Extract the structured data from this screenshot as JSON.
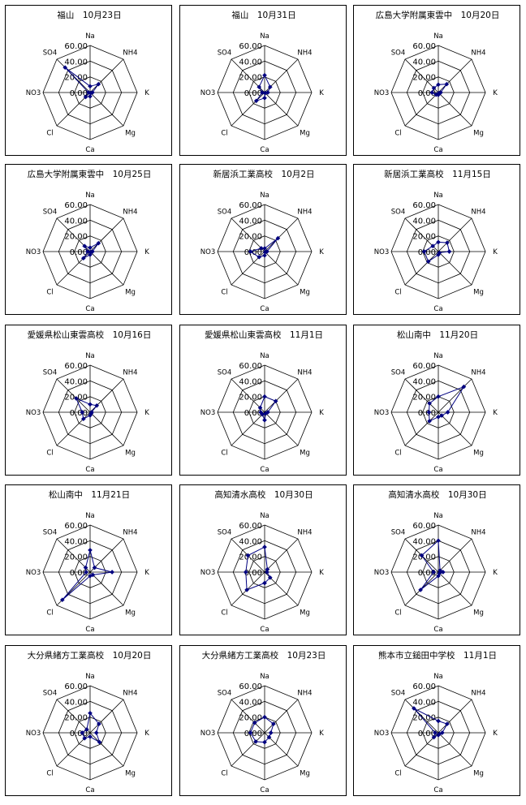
{
  "chart_data": [
    {
      "type": "radar",
      "title": "福山　10月23日",
      "categories": [
        "Na",
        "NH4",
        "K",
        "Mg",
        "Ca",
        "Cl",
        "NO3",
        "SO4"
      ],
      "ticks": [
        "0.00",
        "20.00",
        "40.00",
        "60.00"
      ],
      "rmax": 60,
      "series": [
        {
          "values": [
            8,
            15,
            3,
            1,
            5,
            8,
            2,
            45
          ]
        }
      ]
    },
    {
      "type": "radar",
      "title": "福山　10月31日",
      "categories": [
        "Na",
        "NH4",
        "K",
        "Mg",
        "Ca",
        "Cl",
        "NO3",
        "SO4"
      ],
      "ticks": [
        "0.00",
        "20.00",
        "40.00",
        "60.00"
      ],
      "rmax": 60,
      "series": [
        {
          "values": [
            22,
            10,
            4,
            1,
            7,
            15,
            3,
            10
          ]
        }
      ]
    },
    {
      "type": "radar",
      "title": "広島大学附属東雲中　10月20日",
      "categories": [
        "Na",
        "NH4",
        "K",
        "Mg",
        "Ca",
        "Cl",
        "NO3",
        "SO4"
      ],
      "ticks": [
        "0.00",
        "20.00",
        "40.00",
        "60.00"
      ],
      "rmax": 60,
      "series": [
        {
          "values": [
            10,
            15,
            3,
            1,
            3,
            4,
            8,
            8
          ]
        }
      ]
    },
    {
      "type": "radar",
      "title": "広島大学附属東雲中　10月25日",
      "categories": [
        "Na",
        "NH4",
        "K",
        "Mg",
        "Ca",
        "Cl",
        "NO3",
        "SO4"
      ],
      "ticks": [
        "0.00",
        "20.00",
        "40.00",
        "60.00"
      ],
      "rmax": 60,
      "series": [
        {
          "values": [
            5,
            15,
            3,
            1,
            4,
            12,
            3,
            10
          ]
        }
      ]
    },
    {
      "type": "radar",
      "title": "新居浜工業高校　10月2日",
      "categories": [
        "Na",
        "NH4",
        "K",
        "Mg",
        "Ca",
        "Cl",
        "NO3",
        "SO4"
      ],
      "ticks": [
        "0.00",
        "20.00",
        "40.00",
        "60.00"
      ],
      "rmax": 60,
      "series": [
        {
          "values": [
            4,
            24,
            3,
            1,
            5,
            10,
            18,
            6
          ]
        }
      ]
    },
    {
      "type": "radar",
      "title": "新居浜工業高校　11月15日",
      "categories": [
        "Na",
        "NH4",
        "K",
        "Mg",
        "Ca",
        "Cl",
        "NO3",
        "SO4"
      ],
      "ticks": [
        "0.00",
        "20.00",
        "40.00",
        "60.00"
      ],
      "rmax": 60,
      "series": [
        {
          "values": [
            12,
            16,
            14,
            2,
            4,
            18,
            18,
            10
          ]
        }
      ]
    },
    {
      "type": "radar",
      "title": "愛媛県松山東雲高校　10月16日",
      "categories": [
        "Na",
        "NH4",
        "K",
        "Mg",
        "Ca",
        "Cl",
        "NO3",
        "SO4"
      ],
      "ticks": [
        "0.00",
        "20.00",
        "40.00",
        "60.00"
      ],
      "rmax": 60,
      "series": [
        {
          "values": [
            10,
            12,
            2,
            2,
            4,
            12,
            10,
            25
          ]
        }
      ]
    },
    {
      "type": "radar",
      "title": "愛媛県松山東雲高校　11月1日",
      "categories": [
        "Na",
        "NH4",
        "K",
        "Mg",
        "Ca",
        "Cl",
        "NO3",
        "SO4"
      ],
      "ticks": [
        "0.00",
        "20.00",
        "40.00",
        "60.00"
      ],
      "rmax": 60,
      "series": [
        {
          "values": [
            20,
            20,
            4,
            2,
            10,
            4,
            5,
            8
          ]
        }
      ]
    },
    {
      "type": "radar",
      "title": "松山南中　11月20日",
      "categories": [
        "Na",
        "NH4",
        "K",
        "Mg",
        "Ca",
        "Cl",
        "NO3",
        "SO4"
      ],
      "ticks": [
        "0.00",
        "20.00",
        "40.00",
        "60.00"
      ],
      "rmax": 60,
      "series": [
        {
          "values": [
            20,
            46,
            12,
            6,
            6,
            16,
            12,
            16
          ]
        }
      ]
    },
    {
      "type": "radar",
      "title": "松山南中　11月21日",
      "categories": [
        "Na",
        "NH4",
        "K",
        "Mg",
        "Ca",
        "Cl",
        "NO3",
        "SO4"
      ],
      "ticks": [
        "0.00",
        "20.00",
        "40.00",
        "60.00"
      ],
      "rmax": 60,
      "series": [
        {
          "values": [
            28,
            8,
            28,
            5,
            5,
            50,
            5,
            8
          ]
        }
      ]
    },
    {
      "type": "radar",
      "title": "高知清水高校　10月30日",
      "categories": [
        "Na",
        "NH4",
        "K",
        "Mg",
        "Ca",
        "Cl",
        "NO3",
        "SO4"
      ],
      "ticks": [
        "0.00",
        "20.00",
        "40.00",
        "60.00"
      ],
      "rmax": 60,
      "series": [
        {
          "values": [
            32,
            5,
            3,
            10,
            14,
            32,
            24,
            30
          ]
        }
      ]
    },
    {
      "type": "radar",
      "title": "高知清水高校　10月30日",
      "categories": [
        "Na",
        "NH4",
        "K",
        "Mg",
        "Ca",
        "Cl",
        "NO3",
        "SO4"
      ],
      "ticks": [
        "0.00",
        "20.00",
        "40.00",
        "60.00"
      ],
      "rmax": 60,
      "series": [
        {
          "values": [
            40,
            3,
            6,
            2,
            5,
            32,
            6,
            30
          ]
        }
      ]
    },
    {
      "type": "radar",
      "title": "大分県緒方工業高校　10月20日",
      "categories": [
        "Na",
        "NH4",
        "K",
        "Mg",
        "Ca",
        "Cl",
        "NO3",
        "SO4"
      ],
      "ticks": [
        "0.00",
        "20.00",
        "40.00",
        "60.00"
      ],
      "rmax": 60,
      "series": [
        {
          "values": [
            25,
            16,
            8,
            17,
            5,
            10,
            10,
            6
          ]
        }
      ]
    },
    {
      "type": "radar",
      "title": "大分県緒方工業高校　10月23日",
      "categories": [
        "Na",
        "NH4",
        "K",
        "Mg",
        "Ca",
        "Cl",
        "NO3",
        "SO4"
      ],
      "ticks": [
        "0.00",
        "20.00",
        "40.00",
        "60.00"
      ],
      "rmax": 60,
      "series": [
        {
          "values": [
            20,
            16,
            8,
            8,
            12,
            16,
            18,
            18
          ]
        }
      ]
    },
    {
      "type": "radar",
      "title": "熊本市立鎚田中学校　11月1日",
      "categories": [
        "Na",
        "NH4",
        "K",
        "Mg",
        "Ca",
        "Cl",
        "NO3",
        "SO4"
      ],
      "ticks": [
        "0.00",
        "20.00",
        "40.00",
        "60.00"
      ],
      "rmax": 60,
      "series": [
        {
          "values": [
            15,
            16,
            5,
            2,
            3,
            8,
            4,
            44
          ]
        }
      ]
    }
  ],
  "colors": {
    "series": "#000080",
    "grid": "#000000",
    "background": "#ffffff"
  }
}
